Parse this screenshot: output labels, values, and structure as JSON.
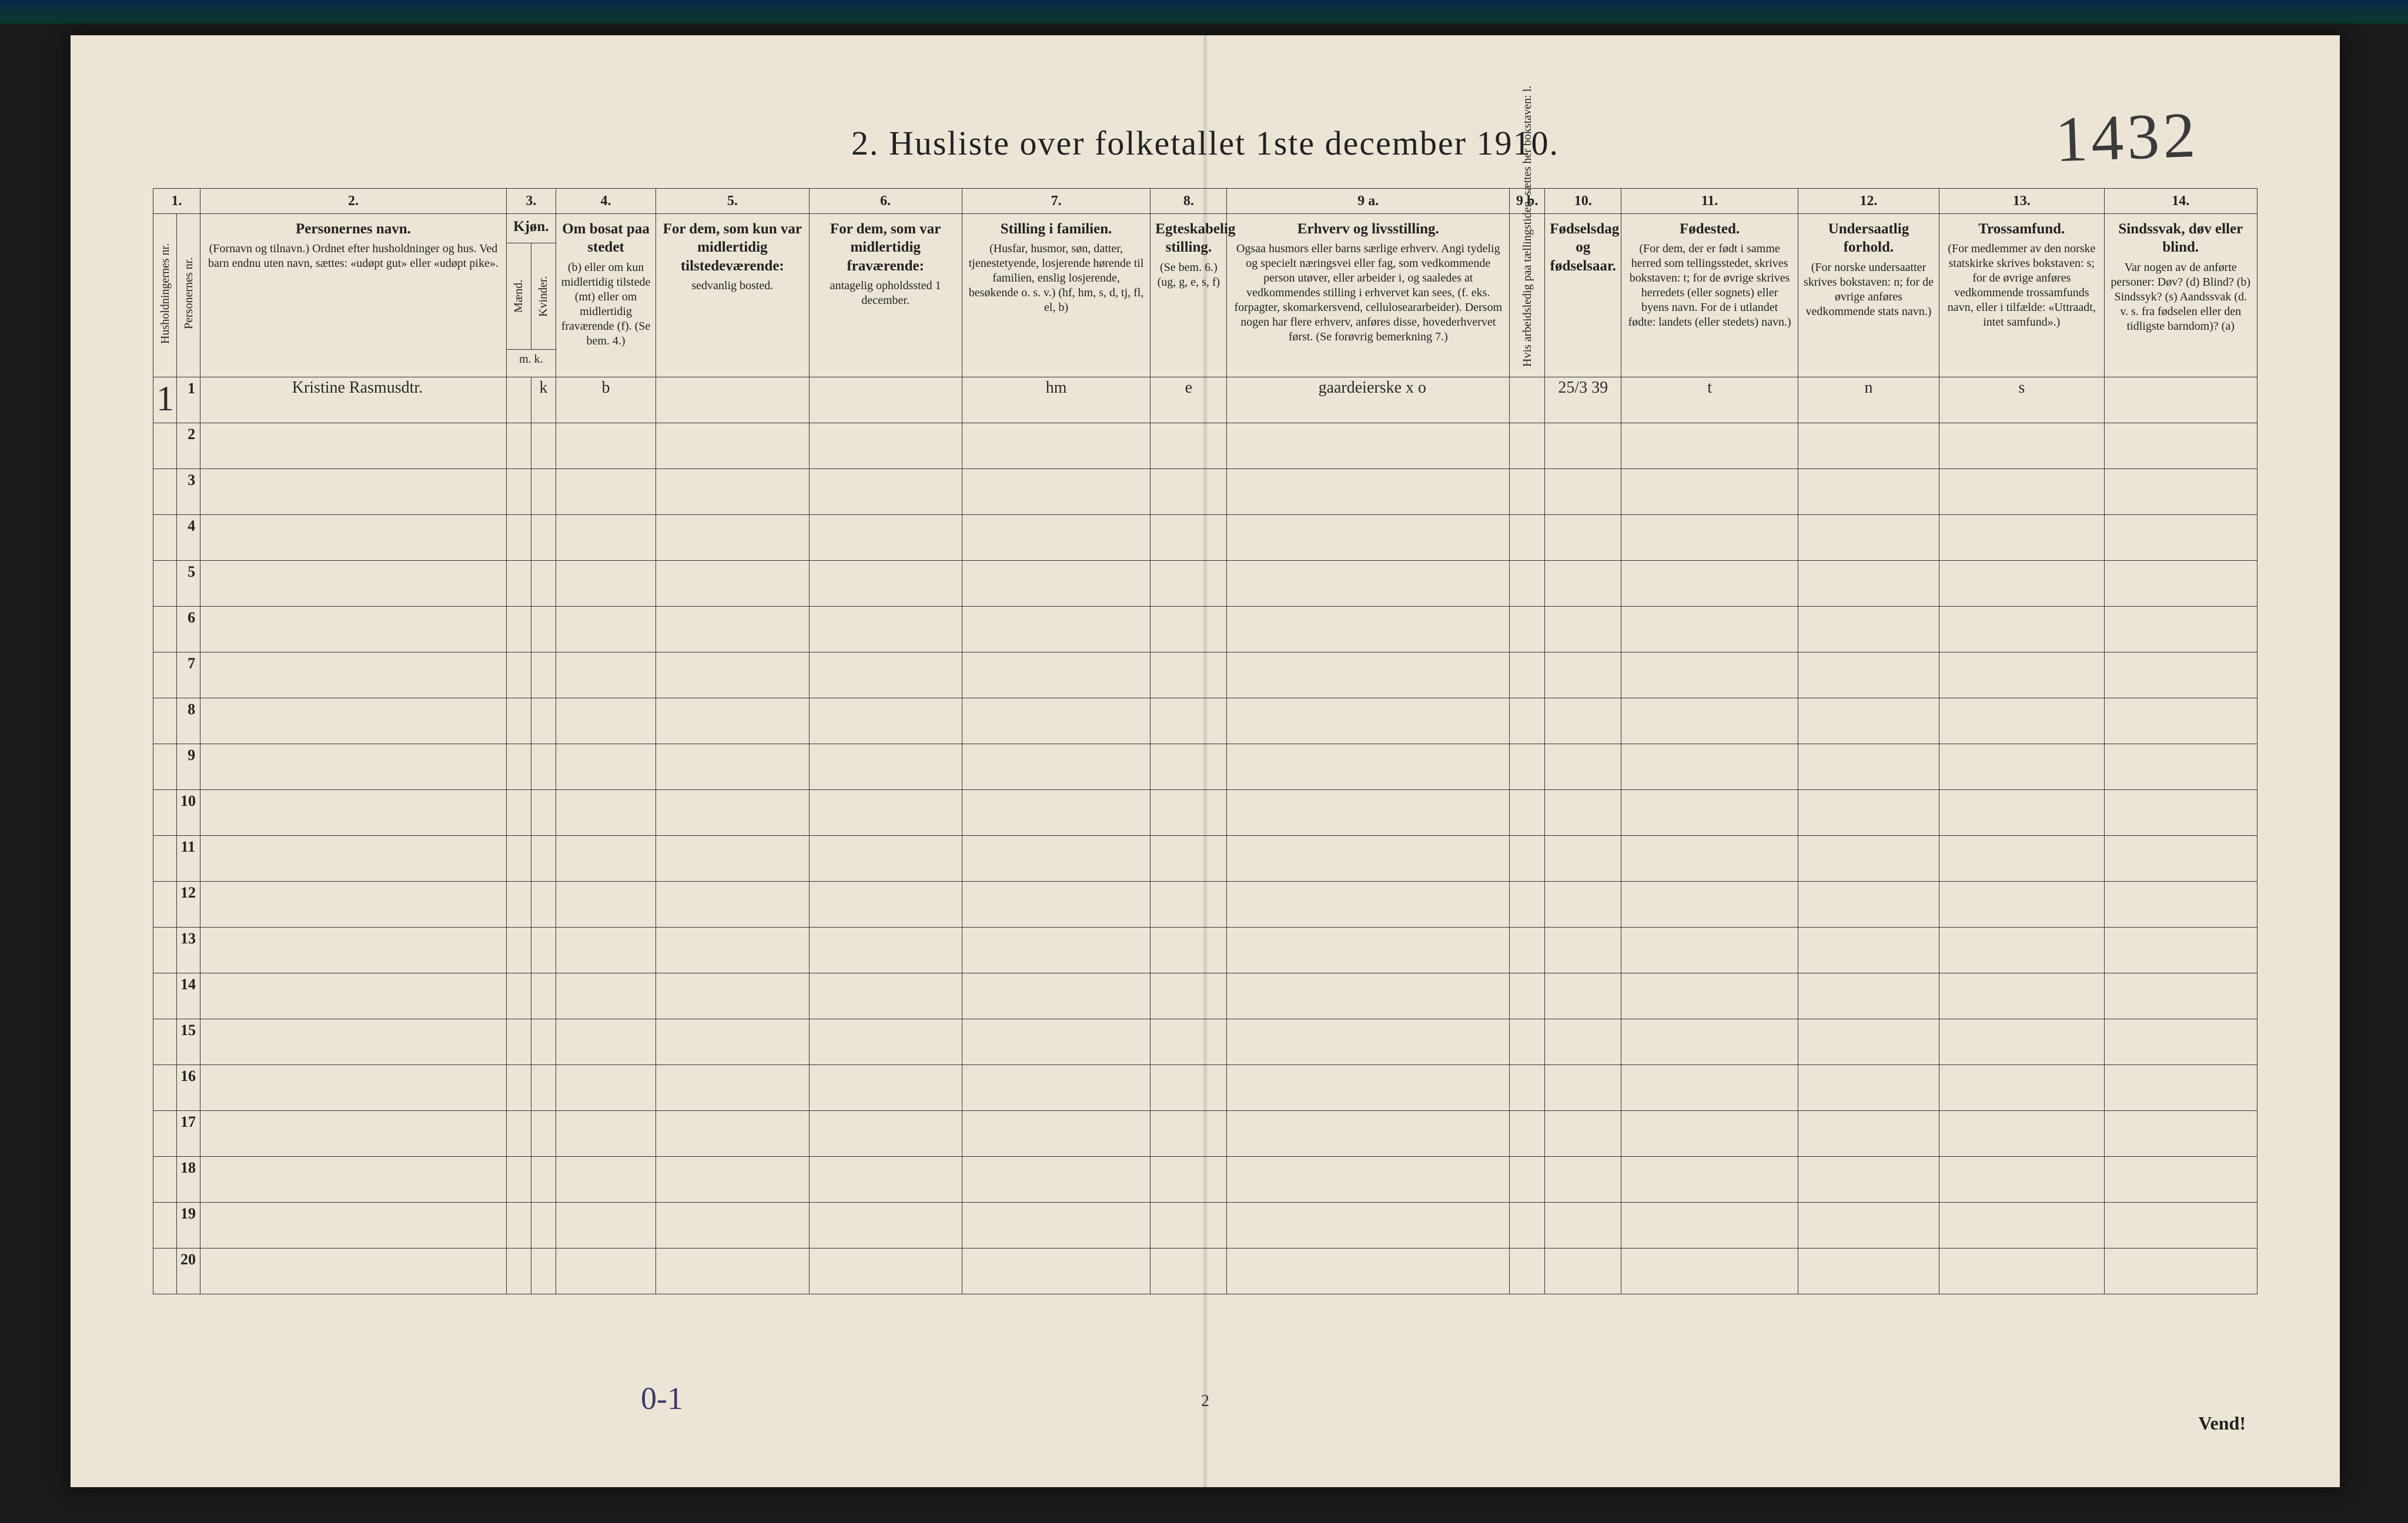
{
  "title": "2.  Husliste over folketallet 1ste december 1910.",
  "handwritten_top_right": "1432",
  "left_margin_mark": "1",
  "bottom_page_number": "2",
  "bottom_right_text": "Vend!",
  "bottom_handwritten": "0-1",
  "colors": {
    "background_outer": "#1a1a1a",
    "top_bar_gradient_from": "#0a2a4a",
    "top_bar_gradient_to": "#0a3a2a",
    "paper": "#ece5d6",
    "ink": "#222222",
    "handwriting": "#2a2a2a",
    "handwriting_blue": "#3a3a6a",
    "border": "#333333"
  },
  "columns": {
    "num_row": [
      "1.",
      "",
      "2.",
      "3.",
      "",
      "4.",
      "5.",
      "6.",
      "7.",
      "8.",
      "9 a.",
      "9 b.",
      "10.",
      "11.",
      "12.",
      "13.",
      "14."
    ],
    "headers": {
      "c1": {
        "rot": "Husholdningernes nr."
      },
      "c1b": {
        "rot": "Personernes nr."
      },
      "c2": {
        "title": "Personernes navn.",
        "sub": "(Fornavn og tilnavn.)\nOrdnet efter husholdninger og hus.\nVed barn endnu uten navn, sættes: «udøpt gut» eller «udøpt pike»."
      },
      "c3": {
        "title": "Kjøn.",
        "sub_m": "Mænd.",
        "sub_k": "Kvinder.",
        "foot": "m.  k."
      },
      "c4": {
        "title": "Om bosat paa stedet",
        "sub": "(b) eller om kun midlertidig tilstede (mt) eller om midlertidig fraværende (f).\n(Se bem. 4.)"
      },
      "c5": {
        "title": "For dem, som kun var midlertidig tilstedeværende:",
        "sub": "sedvanlig bosted."
      },
      "c6": {
        "title": "For dem, som var midlertidig fraværende:",
        "sub": "antagelig opholdssted 1 december."
      },
      "c7": {
        "title": "Stilling i familien.",
        "sub": "(Husfar, husmor, søn, datter, tjenestetyende, losjerende hørende til familien, enslig losjerende, besøkende o. s. v.)\n(hf, hm, s, d, tj, fl, el, b)"
      },
      "c8": {
        "title": "Egteskabelig stilling.",
        "sub": "(Se bem. 6.)\n(ug, g, e, s, f)"
      },
      "c9a": {
        "title": "Erhverv og livsstilling.",
        "sub": "Ogsaa husmors eller barns særlige erhverv. Angi tydelig og specielt næringsvei eller fag, som vedkommende person utøver, eller arbeider i, og saaledes at vedkommendes stilling i erhvervet kan sees, (f. eks. forpagter, skomarkersvend, celluloseararbeider). Dersom nogen har flere erhverv, anføres disse, hovederhvervet først.\n(Se forøvrig bemerkning 7.)"
      },
      "c9b": {
        "rot": "Hvis arbeidsledig paa tællingstiden, sættes her bokstaven: l."
      },
      "c10": {
        "title": "Fødselsdag og fødselsaar."
      },
      "c11": {
        "title": "Fødested.",
        "sub": "(For dem, der er født i samme herred som tellingsstedet, skrives bokstaven: t; for de øvrige skrives herredets (eller sognets) eller byens navn. For de i utlandet fødte: landets (eller stedets) navn.)"
      },
      "c12": {
        "title": "Undersaatlig forhold.",
        "sub": "(For norske undersaatter skrives bokstaven: n; for de øvrige anføres vedkommende stats navn.)"
      },
      "c13": {
        "title": "Trossamfund.",
        "sub": "(For medlemmer av den norske statskirke skrives bokstaven: s; for de øvrige anføres vedkommende trossamfunds navn, eller i tilfælde: «Uttraadt, intet samfund».)"
      },
      "c14": {
        "title": "Sindssvak, døv eller blind.",
        "sub": "Var nogen av de anførte personer:\nDøv?    (d)\nBlind?    (b)\nSindssyk?  (s)\nAandssvak (d. v. s. fra fødselen eller den tidligste barndom)? (a)"
      }
    }
  },
  "rows": [
    {
      "num": "1",
      "name": "Kristine Rasmusdtr.",
      "sex_m": "",
      "sex_k": "k",
      "bosat": "b",
      "c5": "",
      "c6": "",
      "stilling": "hm",
      "egte": "e",
      "erhverv": "gaardeierske  x o",
      "c9b": "",
      "fodsel": "25/3 39",
      "fodested": "t",
      "undersaat": "n",
      "tros": "s",
      "sind": ""
    },
    {
      "num": "2"
    },
    {
      "num": "3"
    },
    {
      "num": "4"
    },
    {
      "num": "5"
    },
    {
      "num": "6"
    },
    {
      "num": "7"
    },
    {
      "num": "8"
    },
    {
      "num": "9"
    },
    {
      "num": "10"
    },
    {
      "num": "11"
    },
    {
      "num": "12"
    },
    {
      "num": "13"
    },
    {
      "num": "14"
    },
    {
      "num": "15"
    },
    {
      "num": "16"
    },
    {
      "num": "17"
    },
    {
      "num": "18"
    },
    {
      "num": "19"
    },
    {
      "num": "20"
    }
  ]
}
